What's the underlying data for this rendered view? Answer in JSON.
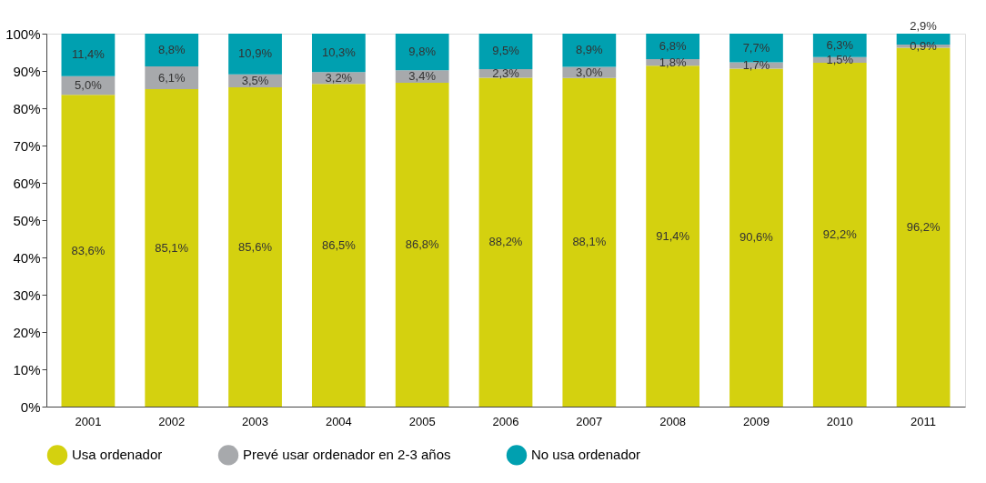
{
  "chart_data": {
    "type": "bar",
    "stacked": true,
    "categories": [
      "2001",
      "2002",
      "2003",
      "2004",
      "2005",
      "2006",
      "2007",
      "2008",
      "2009",
      "2010",
      "2011"
    ],
    "series": [
      {
        "name": "Usa ordenador",
        "color": "#d4d10f",
        "values": [
          83.6,
          85.1,
          85.6,
          86.5,
          86.8,
          88.2,
          88.1,
          91.4,
          90.6,
          92.2,
          96.2
        ],
        "value_labels": [
          "83,6%",
          "85,1%",
          "85,6%",
          "86,5%",
          "86,8%",
          "88,2%",
          "88,1%",
          "91,4%",
          "90,6%",
          "92,2%",
          "96,2%"
        ]
      },
      {
        "name": "Prevé usar ordenador en 2-3 años",
        "color": "#a7a9ac",
        "values": [
          5.0,
          6.1,
          3.5,
          3.2,
          3.4,
          2.3,
          3.0,
          1.8,
          1.7,
          1.5,
          0.9
        ],
        "value_labels": [
          "5,0%",
          "6,1%",
          "3,5%",
          "3,2%",
          "3,4%",
          "2,3%",
          "3,0%",
          "1,8%",
          "1,7%",
          "1,5%",
          "0,9%"
        ]
      },
      {
        "name": "No usa ordenador",
        "color": "#00a0b0",
        "values": [
          11.4,
          8.8,
          10.9,
          10.3,
          9.8,
          9.5,
          8.9,
          6.8,
          7.7,
          6.3,
          2.9
        ],
        "value_labels": [
          "11,4%",
          "8,8%",
          "10,9%",
          "10,3%",
          "9,8%",
          "9,5%",
          "8,9%",
          "6,8%",
          "7,7%",
          "6,3%",
          "2,9%"
        ]
      }
    ],
    "ylim": [
      0,
      100
    ],
    "yticks": [
      {
        "value": 0,
        "label": "0%"
      },
      {
        "value": 10,
        "label": "10%"
      },
      {
        "value": 20,
        "label": "20%"
      },
      {
        "value": 30,
        "label": "30%"
      },
      {
        "value": 40,
        "label": "40%"
      },
      {
        "value": 50,
        "label": "50%"
      },
      {
        "value": 60,
        "label": "60%"
      },
      {
        "value": 70,
        "label": "70%"
      },
      {
        "value": 80,
        "label": "80%"
      },
      {
        "value": 90,
        "label": "90%"
      },
      {
        "value": 100,
        "label": "100%"
      }
    ],
    "grid": false,
    "legend": "bottom"
  }
}
